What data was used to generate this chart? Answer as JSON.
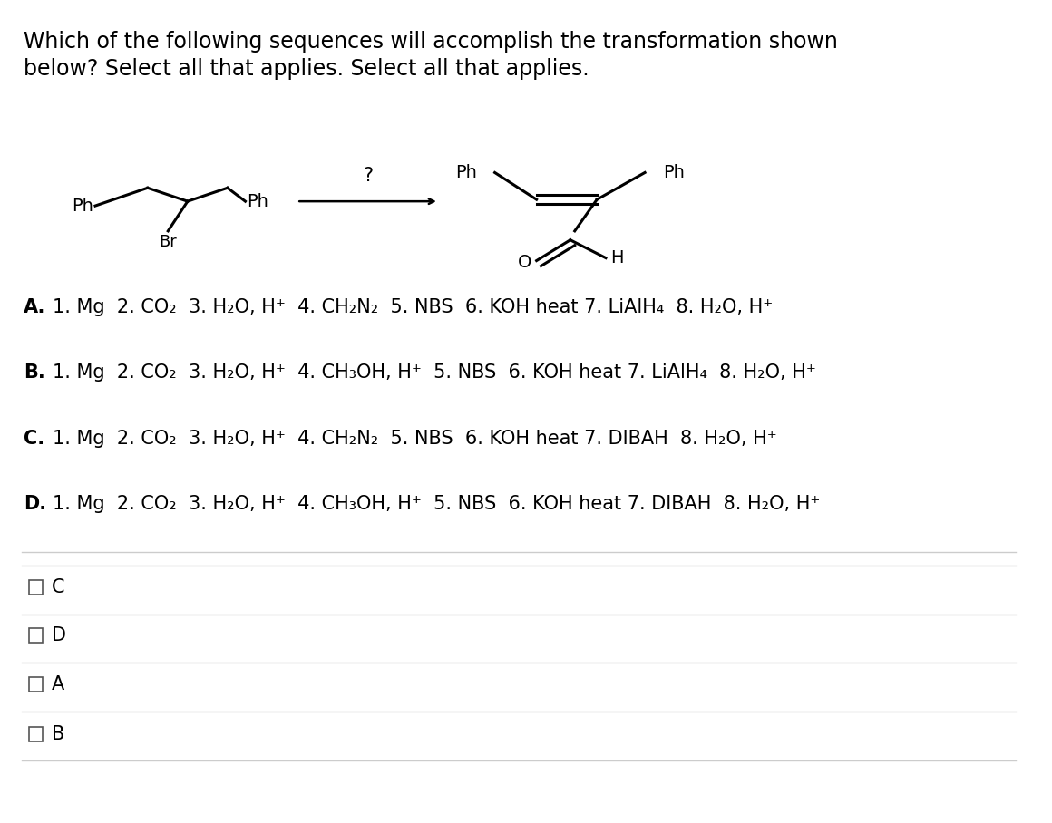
{
  "title_line1": "Which of the following sequences will accomplish the transformation shown",
  "title_line2": "below? Select all that applies. Select all that applies.",
  "title_fontsize": 17,
  "bg_color": "#ffffff",
  "text_color": "#000000",
  "option_A": "1. Mg  2. CO₂  3. H₂O, H⁺  4. CH₂N₂  5. NBS  6. KOH heat 7. LiAlH₄  8. H₂O, H⁺",
  "option_B": "1. Mg  2. CO₂  3. H₂O, H⁺  4. CH₃OH, H⁺  5. NBS  6. KOH heat 7. LiAlH₄  8. H₂O, H⁺",
  "option_C": "1. Mg  2. CO₂  3. H₂O, H⁺  4. CH₂N₂  5. NBS  6. KOH heat 7. DIBAH  8. H₂O, H⁺",
  "option_D": "1. Mg  2. CO₂  3. H₂O, H⁺  4. CH₃OH, H⁺  5. NBS  6. KOH heat 7. DIBAH  8. H₂O, H⁺",
  "options_fontsize": 15,
  "line_color": "#cccccc"
}
